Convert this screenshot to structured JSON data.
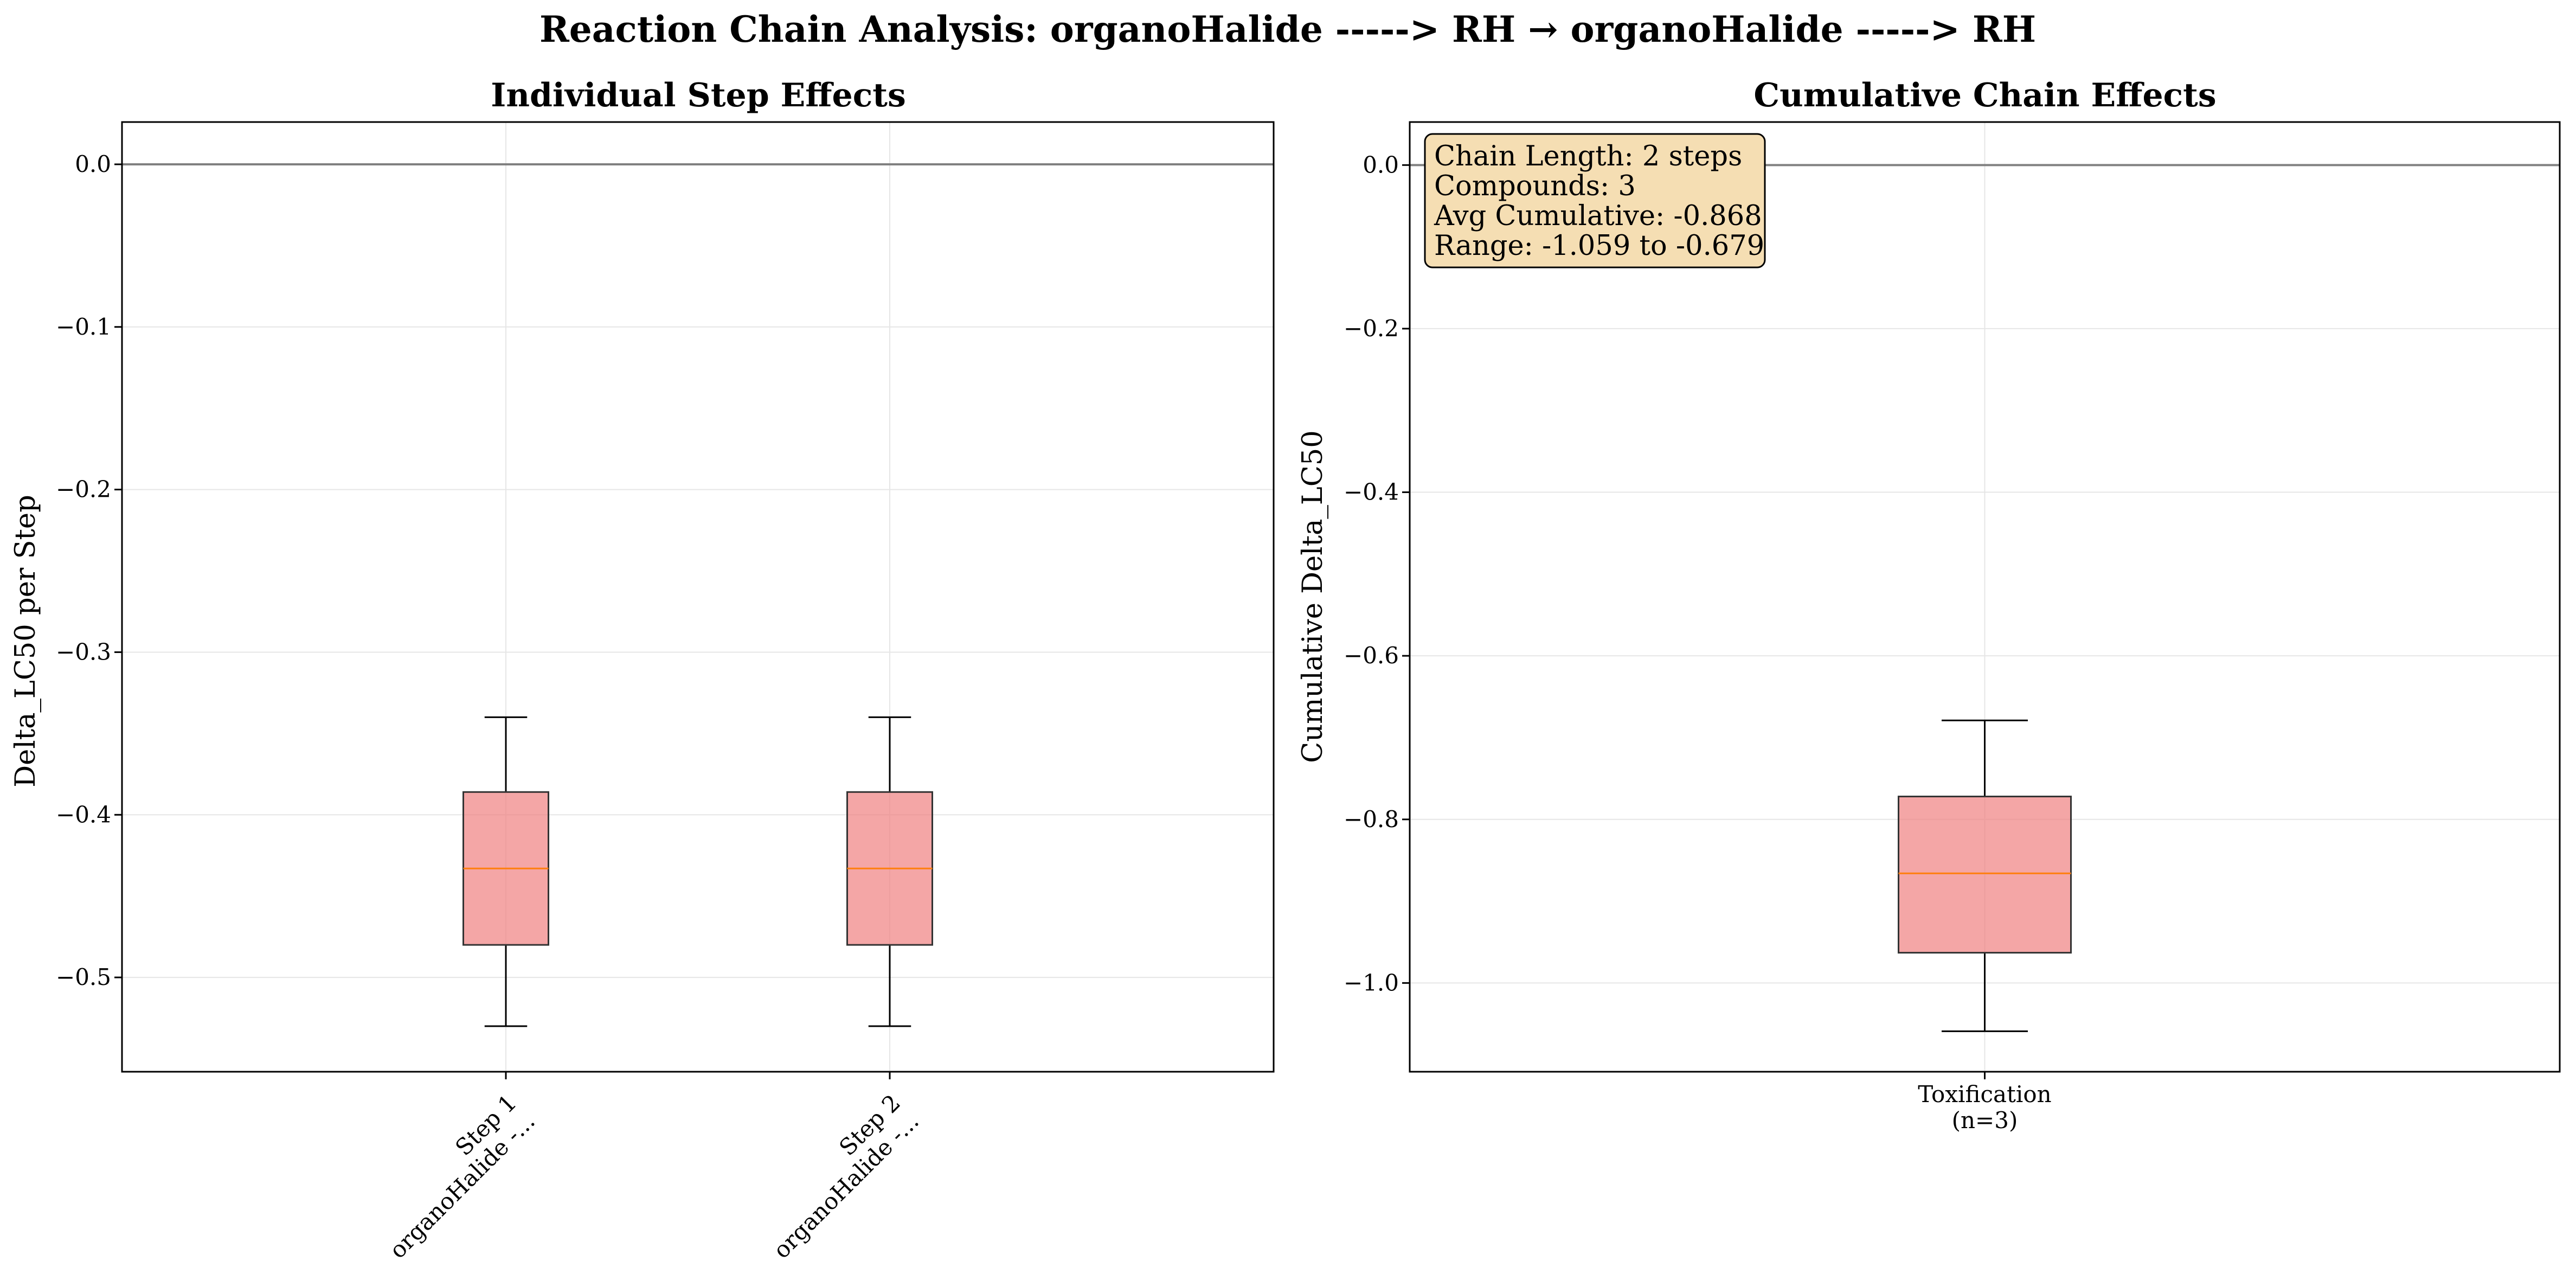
{
  "figure": {
    "suptitle": "Reaction Chain Analysis: organoHalide -----> RH → organoHalide -----> RH"
  },
  "colors": {
    "box_fill": "#f08080",
    "box_edge": "#333333",
    "median": "#ff7f0e",
    "zero_line": "#808080",
    "info_box_fill": "#f5deb3"
  },
  "chart_data": [
    {
      "type": "box",
      "title": "Individual Step Effects",
      "ylabel": "Delta_LC50 per Step",
      "xlabel": "",
      "ylim": [
        -0.558,
        0.026
      ],
      "yticks": [
        0.0,
        -0.1,
        -0.2,
        -0.3,
        -0.4,
        -0.5
      ],
      "ytick_labels": [
        "0.0",
        "−0.1",
        "−0.2",
        "−0.3",
        "−0.4",
        "−0.5"
      ],
      "grid": true,
      "reference_line": 0.0,
      "categories": [
        [
          "Step 1",
          "organoHalide -..."
        ],
        [
          "Step 2",
          "organoHalide -..."
        ]
      ],
      "tick_rotation": 45,
      "boxes": [
        {
          "whislo": -0.53,
          "q1": -0.48,
          "med": -0.433,
          "q3": -0.386,
          "whishi": -0.34
        },
        {
          "whislo": -0.53,
          "q1": -0.48,
          "med": -0.433,
          "q3": -0.386,
          "whishi": -0.34
        }
      ]
    },
    {
      "type": "box",
      "title": "Cumulative Chain Effects",
      "ylabel": "Cumulative Delta_LC50",
      "xlabel": "",
      "ylim": [
        -1.1085,
        0.0526
      ],
      "yticks": [
        0.0,
        -0.2,
        -0.4,
        -0.6,
        -0.8,
        -1.0
      ],
      "ytick_labels": [
        "0.0",
        "−0.2",
        "−0.4",
        "−0.6",
        "−0.8",
        "−1.0"
      ],
      "grid": true,
      "reference_line": 0.0,
      "categories": [
        [
          "Toxification",
          "(n=3)"
        ]
      ],
      "tick_rotation": 0,
      "boxes": [
        {
          "whislo": -1.059,
          "q1": -0.963,
          "med": -0.866,
          "q3": -0.772,
          "whishi": -0.679
        }
      ],
      "info_box": {
        "position": "top-left",
        "lines": [
          "Chain Length: 2 steps",
          "Compounds: 3",
          "Avg Cumulative: -0.868",
          "Range: -1.059 to -0.679"
        ]
      }
    }
  ]
}
